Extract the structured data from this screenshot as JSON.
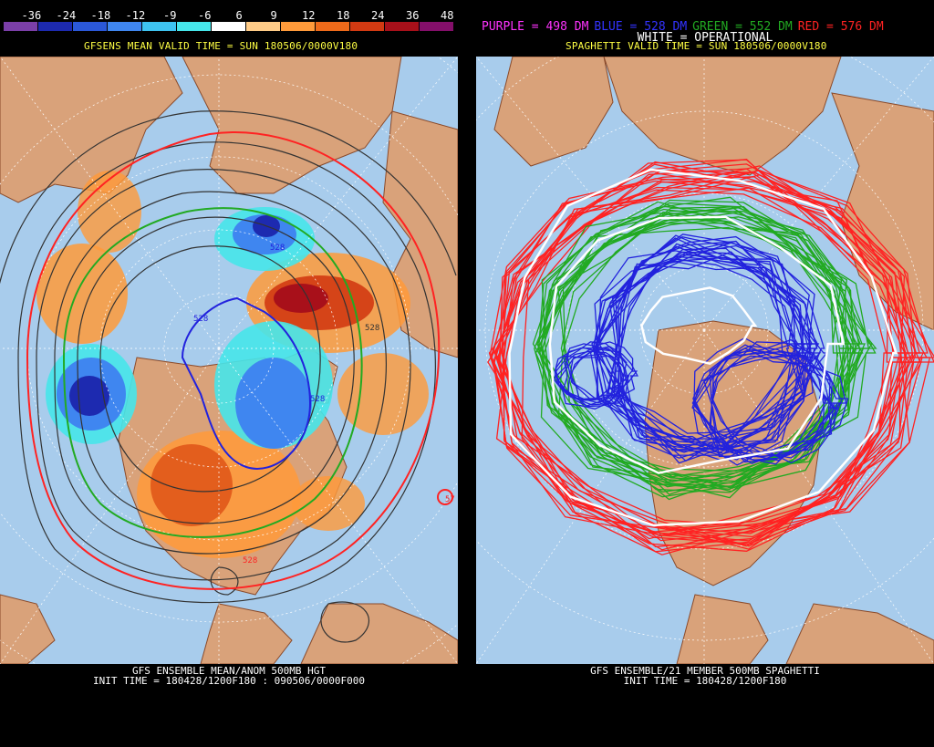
{
  "left": {
    "colorbar": {
      "labels": [
        "-36",
        "-24",
        "-18",
        "-12",
        "-9",
        "-6",
        "6",
        "9",
        "12",
        "18",
        "24",
        "36",
        "48"
      ],
      "colors": [
        "#7b3fa8",
        "#1d2ab0",
        "#2b58d8",
        "#3f86f0",
        "#3ec3f0",
        "#46e6ea",
        "#ffffff",
        "#ffcc88",
        "#ff9a3a",
        "#ee6a1a",
        "#d23a12",
        "#a8101a",
        "#840f6a"
      ]
    },
    "header": "GFSENS MEAN VALID TIME = SUN 180506/0000V180",
    "contour_labels": [
      "528",
      "528",
      "528",
      "528",
      "528",
      "57"
    ],
    "footer_line1": "GFS ENSEMBLE MEAN/ANOM 500MB HGT",
    "footer_line2": "INIT TIME = 180428/1200F180 : 090506/0000F000"
  },
  "right": {
    "key": [
      {
        "text": "PURPLE = 498 DM",
        "color": "#ff33ff"
      },
      {
        "text": "BLUE = 528 DM",
        "color": "#3333ff"
      },
      {
        "text": "GREEN = 552 DM",
        "color": "#22aa22"
      },
      {
        "text": "RED = 576 DM",
        "color": "#ff2222"
      }
    ],
    "white_label": "WHITE = OPERATIONAL",
    "header": "SPAGHETTI VALID TIME = SUN 180506/0000V180",
    "footer_line1": "GFS ENSEMBLE/21 MEMBER 500MB SPAGHETTI",
    "footer_line2": "INIT TIME = 180428/1200F180"
  },
  "colors": {
    "ocean": "#a8ccec",
    "land": "#d9a27a",
    "coast": "#8a4a2a",
    "grid": "#ffffff"
  }
}
